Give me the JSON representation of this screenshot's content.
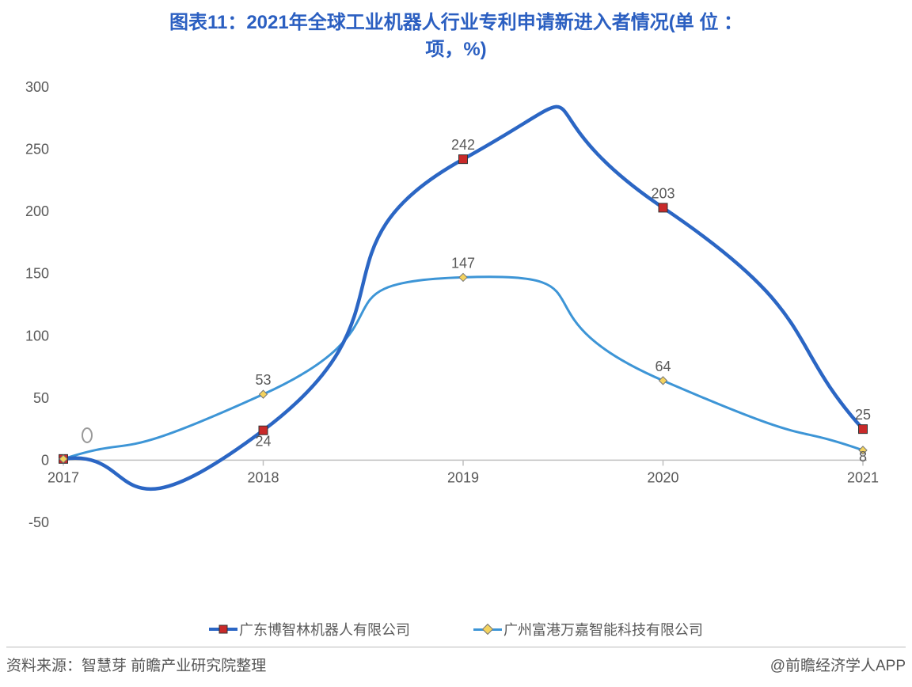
{
  "chart": {
    "type": "line",
    "title_line1": "图表11：2021年全球工业机器人行业专利申请新进入者情况(单 位 ：",
    "title_line2": "项，%)",
    "title_color": "#2b5fc1",
    "title_fontsize": 24,
    "background_color": "#ffffff",
    "categories": [
      "2017",
      "2018",
      "2019",
      "2020",
      "2021"
    ],
    "series": [
      {
        "name": "广东博智林机器人有限公司",
        "color": "#2b66c4",
        "line_width": 4.5,
        "marker_type": "square",
        "marker_fill": "#c92a2a",
        "marker_stroke": "#333333",
        "marker_size": 11,
        "values": [
          1,
          24,
          242,
          203,
          25
        ]
      },
      {
        "name": "广州富港万嘉智能科技有限公司",
        "color": "#3d95d6",
        "line_width": 3,
        "marker_type": "diamond",
        "marker_fill": "#f4d35e",
        "marker_stroke": "#777777",
        "marker_size": 10,
        "values": [
          1,
          53,
          147,
          64,
          8
        ]
      }
    ],
    "y_axis": {
      "min": -50,
      "max": 300,
      "tick_step": 50,
      "ticks": [
        -50,
        0,
        50,
        100,
        150,
        200,
        250,
        300
      ],
      "zero_line_color": "#bfbfbf",
      "tick_label_color": "#595959",
      "tick_fontsize": 18
    },
    "x_axis": {
      "tick_label_color": "#595959",
      "tick_fontsize": 18,
      "tick_mark_color": "#bfbfbf"
    },
    "data_label_color": "#595959",
    "data_label_fontsize": 18,
    "annotation_marker": "O",
    "annotation_at_index": 0,
    "legend_fontsize": 18,
    "legend_text_color": "#595959"
  },
  "footer": {
    "source_label": "资料来源：智慧芽 前瞻产业研究院整理",
    "attribution": "@前瞻经济学人APP",
    "fontsize": 19,
    "color": "#555555"
  }
}
